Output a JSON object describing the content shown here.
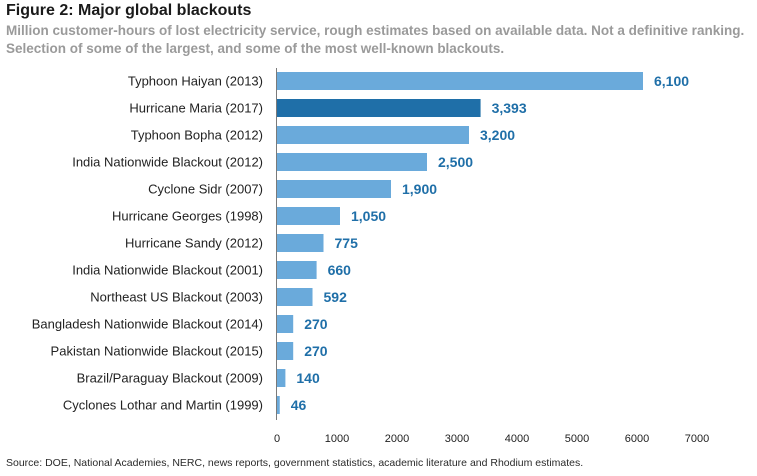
{
  "header": {
    "title": "Figure 2: Major global blackouts",
    "subtitle": "Million customer-hours of lost electricity service, rough estimates based on available data. Not a definitive ranking. Selection of some of the largest, and some of the most well-known blackouts."
  },
  "footer": {
    "source": "Source: DOE, National Academies, NERC, news reports, government statistics, academic literature and Rhodium estimates."
  },
  "colors": {
    "bar": "#6aaadb",
    "highlight_bar": "#1f6fa8",
    "value_label": "#1f6fa8"
  },
  "chart_data": {
    "type": "bar",
    "orientation": "horizontal",
    "categories": [
      "Typhoon Haiyan (2013)",
      "Hurricane Maria (2017)",
      "Typhoon Bopha (2012)",
      "India Nationwide Blackout (2012)",
      "Cyclone Sidr (2007)",
      "Hurricane Georges (1998)",
      "Hurricane Sandy (2012)",
      "India Nationwide Blackout (2001)",
      "Northeast US Blackout (2003)",
      "Bangladesh Nationwide Blackout (2014)",
      "Pakistan Nationwide Blackout (2015)",
      "Brazil/Paraguay Blackout (2009)",
      "Cyclones Lothar and Martin (1999)"
    ],
    "values": [
      6100,
      3393,
      3200,
      2500,
      1900,
      1050,
      775,
      660,
      592,
      270,
      270,
      140,
      46
    ],
    "value_labels": [
      "6,100",
      "3,393",
      "3,200",
      "2,500",
      "1,900",
      "1,050",
      "775",
      "660",
      "592",
      "270",
      "270",
      "140",
      "46"
    ],
    "highlight": "Hurricane Maria (2017)",
    "xlim": [
      0,
      7000
    ],
    "xticks": [
      "0",
      "1000",
      "2000",
      "3000",
      "4000",
      "5000",
      "6000",
      "7000"
    ],
    "grid": false,
    "legend": "none"
  }
}
